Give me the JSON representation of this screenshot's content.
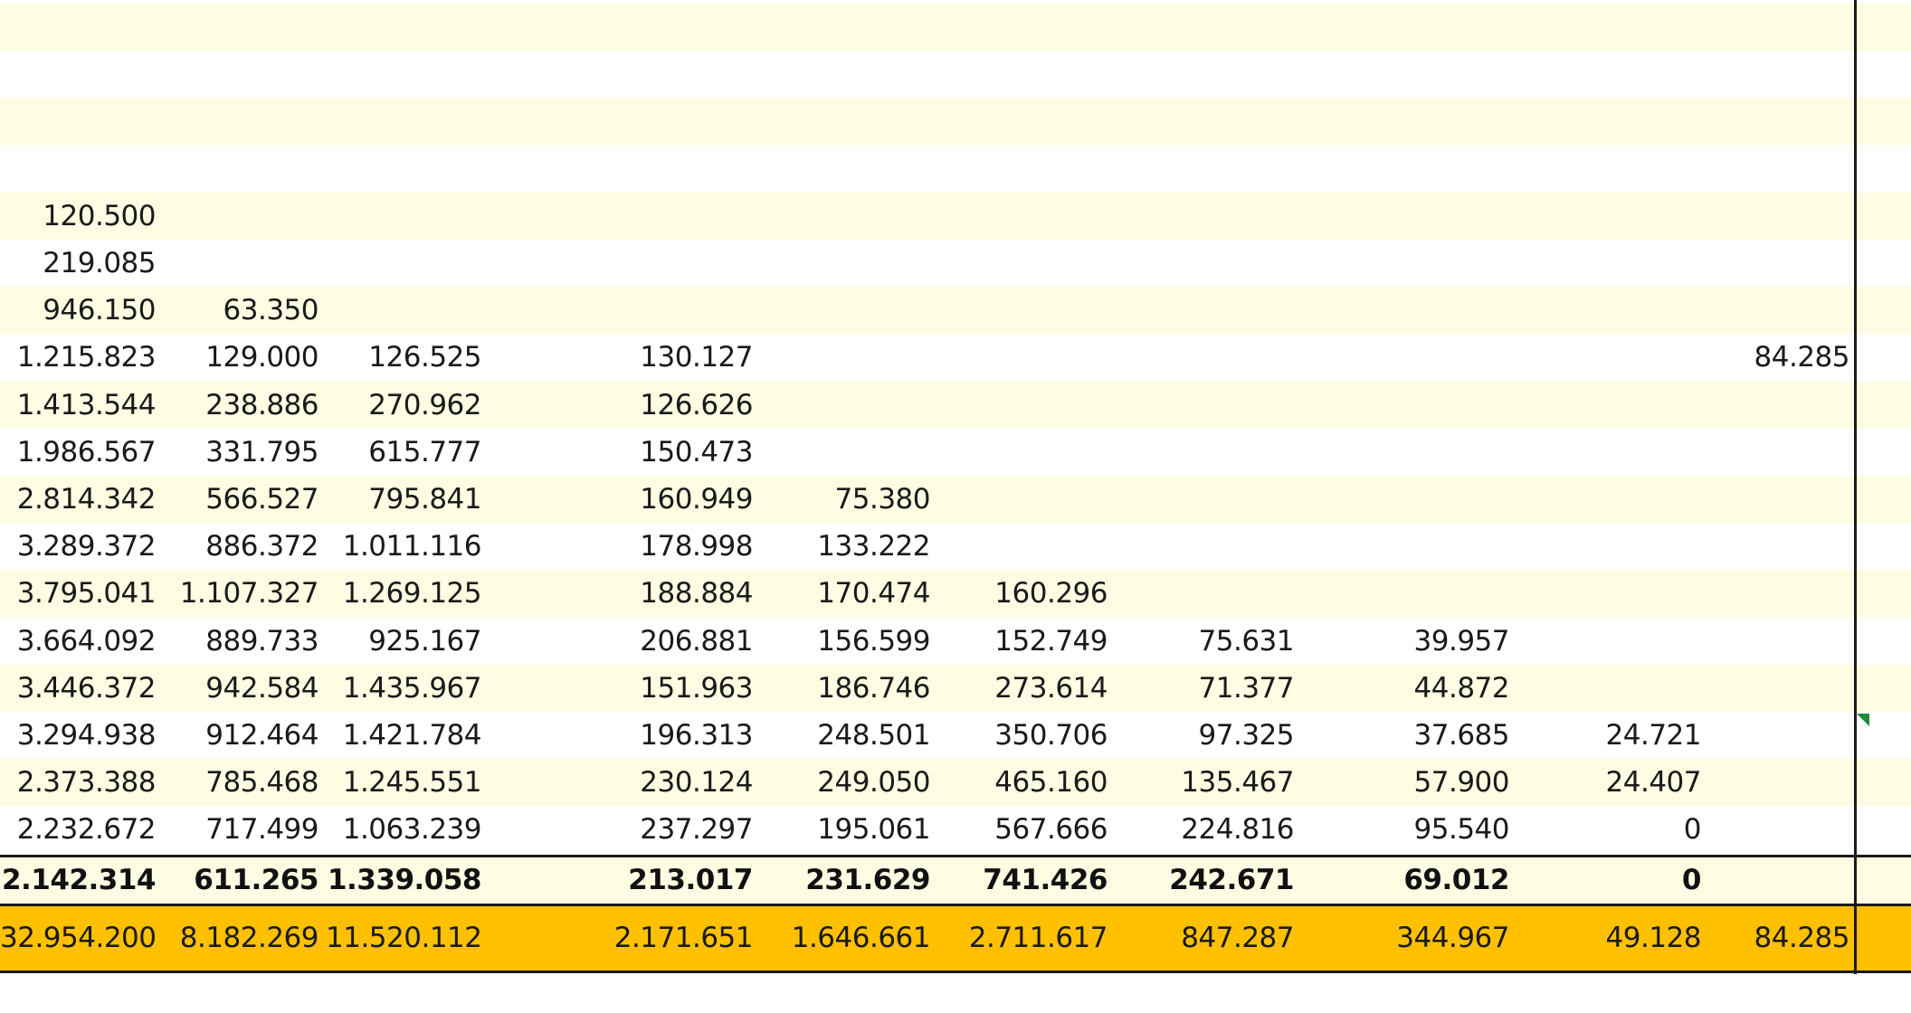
{
  "colors": {
    "stripe": "#fdfde3",
    "plain": "#ffffff",
    "total_fill": "#ffc000",
    "grid_line": "#1a1a1a",
    "cell_marker": "#1f8a3a"
  },
  "rows": [
    [
      "",
      "",
      "",
      "",
      "",
      "",
      "",
      "",
      "",
      ""
    ],
    [
      "",
      "",
      "",
      "",
      "",
      "",
      "",
      "",
      "",
      ""
    ],
    [
      "",
      "",
      "",
      "",
      "",
      "",
      "",
      "",
      "",
      ""
    ],
    [
      "",
      "",
      "",
      "",
      "",
      "",
      "",
      "",
      "",
      ""
    ],
    [
      "120.500",
      "",
      "",
      "",
      "",
      "",
      "",
      "",
      "",
      ""
    ],
    [
      "219.085",
      "",
      "",
      "",
      "",
      "",
      "",
      "",
      "",
      ""
    ],
    [
      "946.150",
      "63.350",
      "",
      "",
      "",
      "",
      "",
      "",
      "",
      ""
    ],
    [
      "1.215.823",
      "129.000",
      "126.525",
      "130.127",
      "",
      "",
      "",
      "",
      "",
      "84.285"
    ],
    [
      "1.413.544",
      "238.886",
      "270.962",
      "126.626",
      "",
      "",
      "",
      "",
      "",
      ""
    ],
    [
      "1.986.567",
      "331.795",
      "615.777",
      "150.473",
      "",
      "",
      "",
      "",
      "",
      ""
    ],
    [
      "2.814.342",
      "566.527",
      "795.841",
      "160.949",
      "75.380",
      "",
      "",
      "",
      "",
      ""
    ],
    [
      "3.289.372",
      "886.372",
      "1.011.116",
      "178.998",
      "133.222",
      "",
      "",
      "",
      "",
      ""
    ],
    [
      "3.795.041",
      "1.107.327",
      "1.269.125",
      "188.884",
      "170.474",
      "160.296",
      "",
      "",
      "",
      ""
    ],
    [
      "3.664.092",
      "889.733",
      "925.167",
      "206.881",
      "156.599",
      "152.749",
      "75.631",
      "39.957",
      "",
      ""
    ],
    [
      "3.446.372",
      "942.584",
      "1.435.967",
      "151.963",
      "186.746",
      "273.614",
      "71.377",
      "44.872",
      "",
      ""
    ],
    [
      "3.294.938",
      "912.464",
      "1.421.784",
      "196.313",
      "248.501",
      "350.706",
      "97.325",
      "37.685",
      "24.721",
      ""
    ],
    [
      "2.373.388",
      "785.468",
      "1.245.551",
      "230.124",
      "249.050",
      "465.160",
      "135.467",
      "57.900",
      "24.407",
      ""
    ],
    [
      "2.232.672",
      "717.499",
      "1.063.239",
      "237.297",
      "195.061",
      "567.666",
      "224.816",
      "95.540",
      "0",
      ""
    ]
  ],
  "bold_row": [
    "2.142.314",
    "611.265",
    "1.339.058",
    "213.017",
    "231.629",
    "741.426",
    "242.671",
    "69.012",
    "0",
    ""
  ],
  "total_row": [
    "32.954.200",
    "8.182.269",
    "11.520.112",
    "2.171.651",
    "1.646.661",
    "2.711.617",
    "847.287",
    "344.967",
    "49.128",
    "84.285"
  ]
}
